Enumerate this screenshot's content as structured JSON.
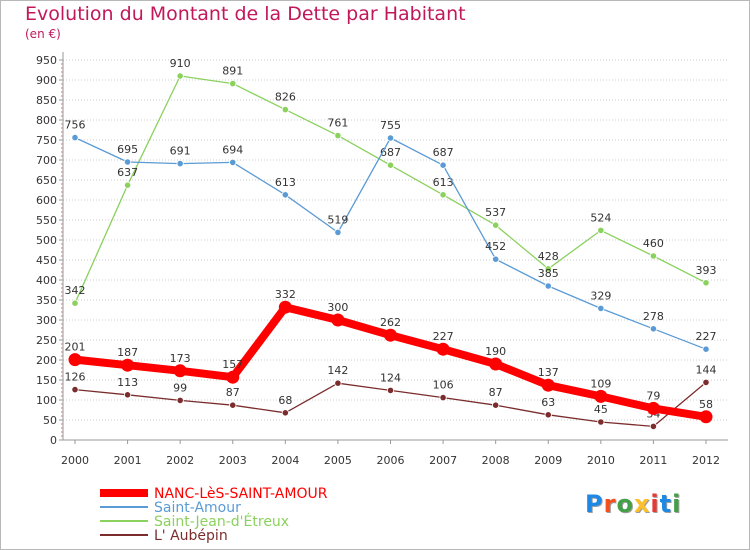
{
  "title": "Evolution du Montant de la Dette par Habitant",
  "unit": "(en €)",
  "logo": {
    "text": "Proxiti",
    "colors": [
      "#1e88e5",
      "#f4511e",
      "#43a047",
      "#fbc02d",
      "#e53935",
      "#1e88e5",
      "#43a047"
    ]
  },
  "chart_data": {
    "type": "line",
    "x": [
      "2000",
      "2001",
      "2002",
      "2003",
      "2004",
      "2005",
      "2006",
      "2007",
      "2008",
      "2009",
      "2010",
      "2011",
      "2012"
    ],
    "ylim": [
      0,
      950
    ],
    "yticks": [
      0,
      50,
      100,
      150,
      200,
      250,
      300,
      350,
      400,
      450,
      500,
      550,
      600,
      650,
      700,
      750,
      800,
      850,
      900,
      950
    ],
    "grid": "horizontal dotted",
    "legend_position": "bottom-left",
    "series": [
      {
        "name": "Saint-Jean-d'Étreux",
        "color": "#8bd15e",
        "values": [
          342,
          637,
          910,
          891,
          826,
          761,
          687,
          613,
          537,
          428,
          524,
          460,
          393
        ]
      },
      {
        "name": "Saint-Amour",
        "color": "#5b9bd5",
        "values": [
          756,
          695,
          691,
          694,
          613,
          519,
          755,
          687,
          452,
          385,
          329,
          278,
          227
        ]
      },
      {
        "name": "L'Aubépin",
        "color": "#7b2d2d",
        "values": [
          126,
          113,
          99,
          87,
          68,
          142,
          124,
          106,
          87,
          63,
          45,
          34,
          144
        ]
      },
      {
        "name": "NANC-LèS-SAINT-AMOUR",
        "color": "#ff0000",
        "values": [
          201,
          187,
          173,
          157,
          332,
          300,
          262,
          227,
          190,
          137,
          109,
          79,
          58
        ]
      }
    ],
    "legend": [
      {
        "label": "NANC-LèS-SAINT-AMOUR",
        "color": "#ff0000"
      },
      {
        "label": "Saint-Amour",
        "color": "#5b9bd5"
      },
      {
        "label": "Saint-Jean-d'Étreux",
        "color": "#8bd15e"
      },
      {
        "label": "L' Aubépin",
        "color": "#7b2d2d"
      }
    ]
  }
}
